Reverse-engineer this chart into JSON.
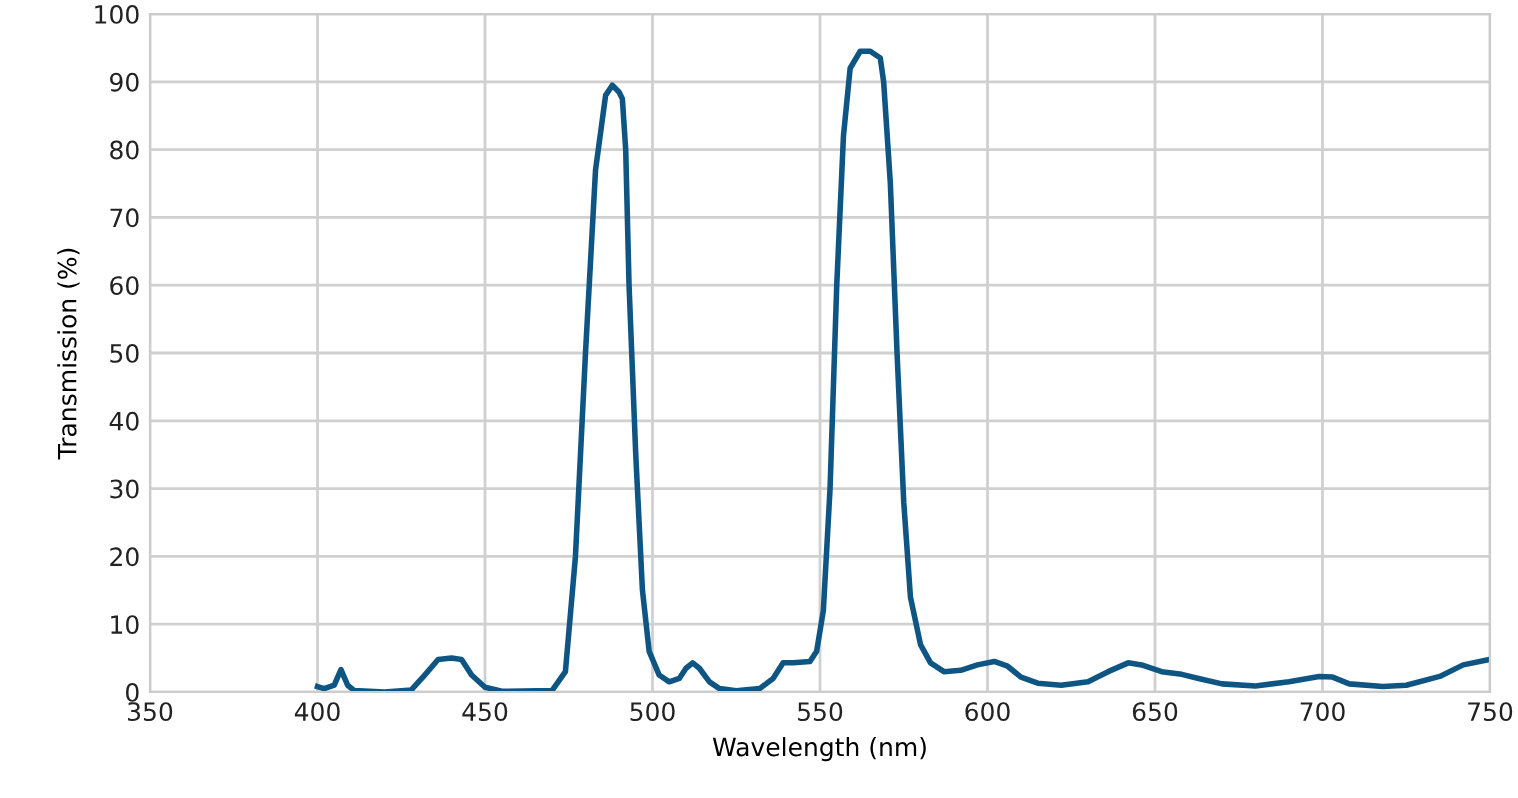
{
  "chart_data": {
    "type": "line",
    "xlabel": "Wavelength (nm)",
    "ylabel": "Transmission (%)",
    "xlim": [
      350,
      750
    ],
    "ylim": [
      0,
      100
    ],
    "xticks": [
      350,
      400,
      450,
      500,
      550,
      600,
      650,
      700,
      750
    ],
    "yticks": [
      0,
      10,
      20,
      30,
      40,
      50,
      60,
      70,
      80,
      90,
      100
    ],
    "grid": true,
    "marker": "none",
    "line_style": "solid",
    "series": [
      {
        "color": "#0f5584",
        "x": [
          400,
          402,
          405,
          407,
          409,
          411,
          420,
          428,
          432,
          436,
          440,
          443,
          446,
          450,
          455,
          470,
          474,
          477,
          480,
          483,
          486,
          488,
          490,
          491,
          492,
          493,
          495,
          497,
          499,
          502,
          505,
          508,
          510,
          512,
          514,
          517,
          520,
          525,
          532,
          536,
          539,
          542,
          547,
          549,
          551,
          553,
          555,
          557,
          559,
          562,
          565,
          568,
          569,
          571,
          573,
          575,
          577,
          580,
          583,
          587,
          592,
          597,
          602,
          606,
          610,
          615,
          622,
          630,
          636,
          642,
          646,
          652,
          658,
          663,
          670,
          680,
          690,
          699,
          703,
          708,
          718,
          725,
          735,
          742,
          750
        ],
        "values": [
          0.8,
          0.5,
          1,
          3.3,
          1,
          0.2,
          0,
          0.3,
          2.5,
          4.8,
          5,
          4.8,
          2.5,
          0.7,
          0.1,
          0.2,
          3,
          20,
          50,
          77,
          88,
          89.5,
          88.5,
          87.5,
          80,
          60,
          35,
          15,
          6,
          2.5,
          1.5,
          2,
          3.5,
          4.3,
          3.5,
          1.5,
          0.5,
          0.2,
          0.5,
          2,
          4.3,
          4.3,
          4.5,
          6,
          12,
          30,
          60,
          82,
          92,
          94.5,
          94.5,
          93.5,
          90,
          75,
          50,
          28,
          14,
          7,
          4.3,
          3,
          3.2,
          4,
          4.5,
          3.8,
          2.2,
          1.3,
          1,
          1.5,
          3,
          4.3,
          4,
          3,
          2.6,
          2,
          1.2,
          0.9,
          1.5,
          2.3,
          2.2,
          1.2,
          0.8,
          1,
          2.3,
          4,
          4.8
        ]
      }
    ]
  }
}
